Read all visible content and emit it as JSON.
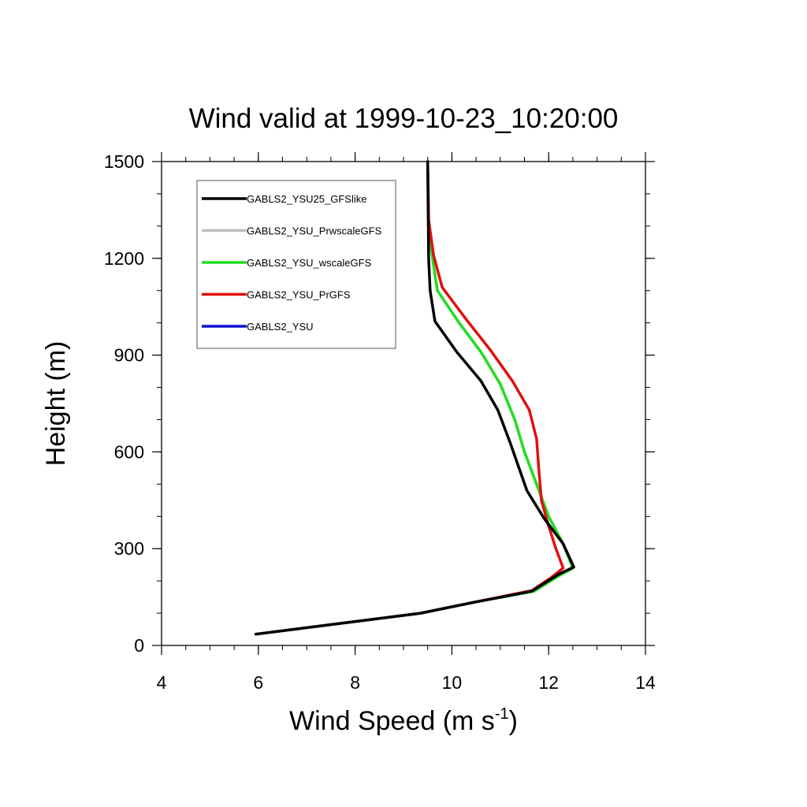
{
  "chart_data": {
    "type": "line",
    "title": "Wind valid at 1999-10-23_10:20:00",
    "xlabel": "Wind Speed (m s",
    "xlabel_sup": "-1",
    "xlabel_end": ")",
    "ylabel": "Height (m)",
    "xlim": [
      4,
      14
    ],
    "ylim": [
      0,
      1500
    ],
    "xticks": [
      4,
      6,
      8,
      10,
      12,
      14
    ],
    "yticks": [
      0,
      300,
      600,
      900,
      1200,
      1500
    ],
    "grid": false,
    "legend_position": "top-left",
    "series": [
      {
        "name": "GABLS2_YSU25_GFSlike",
        "color": "#000000",
        "points": [
          [
            5.95,
            35
          ],
          [
            9.35,
            100
          ],
          [
            10.5,
            135
          ],
          [
            11.65,
            168
          ],
          [
            12.2,
            220
          ],
          [
            12.52,
            243
          ],
          [
            12.3,
            315
          ],
          [
            11.9,
            395
          ],
          [
            11.55,
            480
          ],
          [
            11.2,
            630
          ],
          [
            10.95,
            730
          ],
          [
            10.6,
            820
          ],
          [
            10.1,
            910
          ],
          [
            9.65,
            1005
          ],
          [
            9.55,
            1100
          ],
          [
            9.52,
            1200
          ],
          [
            9.5,
            1500
          ]
        ]
      },
      {
        "name": "GABLS2_YSU_PrwscaleGFS",
        "color": "#bfbfbf",
        "points": [
          [
            5.95,
            35
          ],
          [
            9.35,
            100
          ],
          [
            10.5,
            135
          ],
          [
            11.7,
            168
          ],
          [
            12.2,
            215
          ],
          [
            12.5,
            240
          ],
          [
            12.3,
            315
          ],
          [
            12.0,
            400
          ],
          [
            11.8,
            480
          ],
          [
            11.5,
            600
          ],
          [
            11.3,
            700
          ],
          [
            11.0,
            810
          ],
          [
            10.6,
            910
          ],
          [
            10.15,
            1000
          ],
          [
            9.7,
            1100
          ],
          [
            9.6,
            1200
          ],
          [
            9.52,
            1300
          ],
          [
            9.5,
            1500
          ]
        ]
      },
      {
        "name": "GABLS2_YSU_wscaleGFS",
        "color": "#22dd22",
        "points": [
          [
            5.95,
            35
          ],
          [
            9.35,
            100
          ],
          [
            10.5,
            135
          ],
          [
            11.7,
            168
          ],
          [
            12.2,
            215
          ],
          [
            12.5,
            240
          ],
          [
            12.3,
            315
          ],
          [
            12.0,
            400
          ],
          [
            11.8,
            480
          ],
          [
            11.5,
            600
          ],
          [
            11.3,
            700
          ],
          [
            11.0,
            810
          ],
          [
            10.6,
            910
          ],
          [
            10.15,
            1000
          ],
          [
            9.7,
            1100
          ],
          [
            9.6,
            1200
          ],
          [
            9.52,
            1300
          ],
          [
            9.5,
            1500
          ]
        ]
      },
      {
        "name": "GABLS2_YSU_PrGFS",
        "color": "#e01010",
        "points": [
          [
            5.95,
            35
          ],
          [
            9.35,
            100
          ],
          [
            10.5,
            135
          ],
          [
            11.65,
            170
          ],
          [
            12.05,
            210
          ],
          [
            12.3,
            240
          ],
          [
            12.15,
            300
          ],
          [
            12.0,
            370
          ],
          [
            11.85,
            450
          ],
          [
            11.8,
            540
          ],
          [
            11.75,
            640
          ],
          [
            11.6,
            730
          ],
          [
            11.25,
            820
          ],
          [
            10.8,
            915
          ],
          [
            10.3,
            1010
          ],
          [
            9.8,
            1110
          ],
          [
            9.62,
            1210
          ],
          [
            9.52,
            1320
          ],
          [
            9.5,
            1500
          ]
        ]
      },
      {
        "name": "GABLS2_YSU",
        "color": "#1010d0",
        "points": []
      }
    ]
  }
}
